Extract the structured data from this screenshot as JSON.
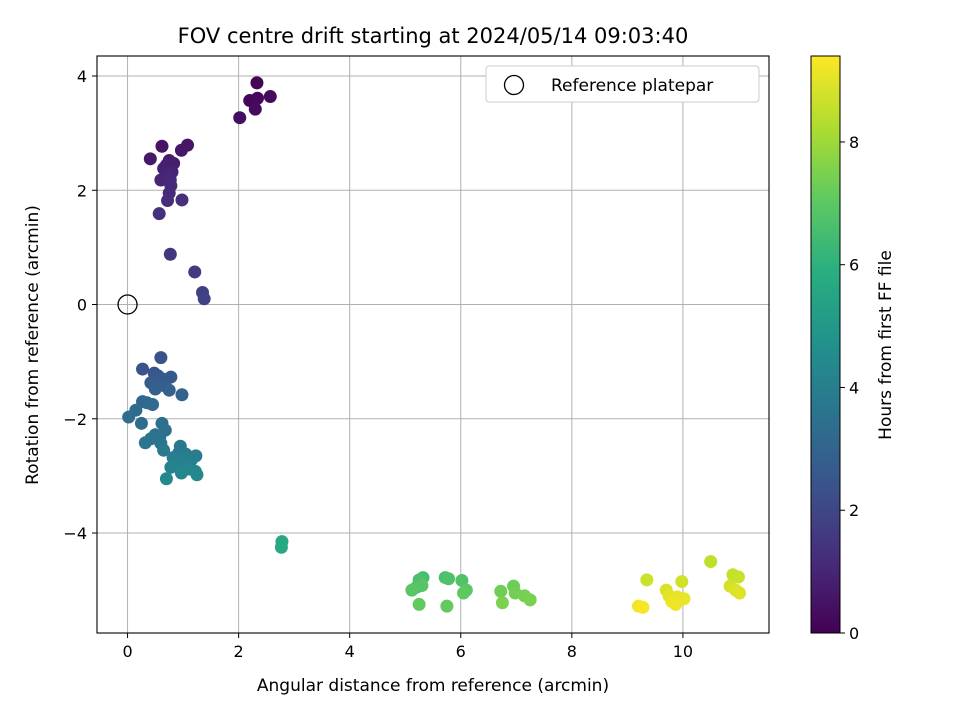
{
  "chart_data": {
    "type": "scatter",
    "title": "FOV centre drift starting at 2024/05/14 09:03:40",
    "xlabel": "Angular distance from reference (arcmin)",
    "ylabel": "Rotation from reference (arcmin)",
    "xlim": [
      -0.55,
      11.55
    ],
    "ylim": [
      -5.75,
      4.35
    ],
    "xticks": [
      0,
      2,
      4,
      6,
      8,
      10
    ],
    "yticks": [
      -4,
      -2,
      0,
      2,
      4
    ],
    "xtick_labels": [
      "0",
      "2",
      "4",
      "6",
      "8",
      "10"
    ],
    "ytick_labels": [
      "−4",
      "−2",
      "0",
      "2",
      "4"
    ],
    "grid": true,
    "legend": {
      "position": "top-right",
      "entries": [
        "Reference platepar"
      ]
    },
    "reference_point": {
      "x": 0,
      "y": 0,
      "label": "Reference platepar"
    },
    "colorbar": {
      "label": "Hours from first FF file",
      "colormap": "viridis",
      "range": [
        0,
        9.4
      ],
      "ticks": [
        0,
        2,
        4,
        6,
        8
      ],
      "tick_labels": [
        "0",
        "2",
        "4",
        "6",
        "8"
      ]
    },
    "points": [
      {
        "x": 2.33,
        "y": 3.88,
        "c": 0.1
      },
      {
        "x": 2.2,
        "y": 3.57,
        "c": 0.15
      },
      {
        "x": 2.34,
        "y": 3.61,
        "c": 0.2
      },
      {
        "x": 2.57,
        "y": 3.64,
        "c": 0.25
      },
      {
        "x": 2.3,
        "y": 3.42,
        "c": 0.3
      },
      {
        "x": 2.02,
        "y": 3.27,
        "c": 0.35
      },
      {
        "x": 0.62,
        "y": 2.77,
        "c": 0.5
      },
      {
        "x": 1.08,
        "y": 2.79,
        "c": 0.55
      },
      {
        "x": 0.97,
        "y": 2.7,
        "c": 0.6
      },
      {
        "x": 0.41,
        "y": 2.55,
        "c": 0.65
      },
      {
        "x": 0.75,
        "y": 2.52,
        "c": 0.7
      },
      {
        "x": 0.83,
        "y": 2.47,
        "c": 0.75
      },
      {
        "x": 0.7,
        "y": 2.44,
        "c": 0.8
      },
      {
        "x": 0.65,
        "y": 2.38,
        "c": 0.85
      },
      {
        "x": 0.8,
        "y": 2.32,
        "c": 0.9
      },
      {
        "x": 0.72,
        "y": 2.28,
        "c": 0.95
      },
      {
        "x": 0.6,
        "y": 2.18,
        "c": 1.0
      },
      {
        "x": 0.77,
        "y": 2.18,
        "c": 1.05
      },
      {
        "x": 0.78,
        "y": 2.08,
        "c": 1.1
      },
      {
        "x": 0.75,
        "y": 1.95,
        "c": 1.15
      },
      {
        "x": 0.72,
        "y": 1.82,
        "c": 1.2
      },
      {
        "x": 0.98,
        "y": 1.83,
        "c": 1.25
      },
      {
        "x": 0.57,
        "y": 1.59,
        "c": 1.3
      },
      {
        "x": 0.77,
        "y": 0.88,
        "c": 1.45
      },
      {
        "x": 1.21,
        "y": 0.57,
        "c": 1.6
      },
      {
        "x": 1.35,
        "y": 0.21,
        "c": 1.75
      },
      {
        "x": 1.38,
        "y": 0.1,
        "c": 1.85
      },
      {
        "x": 0.6,
        "y": -0.93,
        "c": 2.4
      },
      {
        "x": 0.27,
        "y": -1.13,
        "c": 2.45
      },
      {
        "x": 0.48,
        "y": -1.2,
        "c": 2.5
      },
      {
        "x": 0.55,
        "y": -1.25,
        "c": 2.55
      },
      {
        "x": 0.62,
        "y": -1.3,
        "c": 2.6
      },
      {
        "x": 0.78,
        "y": -1.27,
        "c": 2.65
      },
      {
        "x": 0.42,
        "y": -1.37,
        "c": 2.7
      },
      {
        "x": 0.56,
        "y": -1.4,
        "c": 2.75
      },
      {
        "x": 0.68,
        "y": -1.43,
        "c": 2.8
      },
      {
        "x": 0.5,
        "y": -1.48,
        "c": 2.85
      },
      {
        "x": 0.75,
        "y": -1.5,
        "c": 2.9
      },
      {
        "x": 0.98,
        "y": -1.58,
        "c": 2.95
      },
      {
        "x": 0.27,
        "y": -1.7,
        "c": 3.1
      },
      {
        "x": 0.35,
        "y": -1.72,
        "c": 3.15
      },
      {
        "x": 0.45,
        "y": -1.75,
        "c": 3.2
      },
      {
        "x": 0.15,
        "y": -1.85,
        "c": 3.25
      },
      {
        "x": 0.02,
        "y": -1.97,
        "c": 3.3
      },
      {
        "x": 0.25,
        "y": -2.08,
        "c": 3.35
      },
      {
        "x": 0.62,
        "y": -2.08,
        "c": 3.4
      },
      {
        "x": 0.68,
        "y": -2.2,
        "c": 3.45
      },
      {
        "x": 0.5,
        "y": -2.28,
        "c": 3.5
      },
      {
        "x": 0.58,
        "y": -2.32,
        "c": 3.55
      },
      {
        "x": 0.42,
        "y": -2.35,
        "c": 3.6
      },
      {
        "x": 0.32,
        "y": -2.42,
        "c": 3.65
      },
      {
        "x": 0.6,
        "y": -2.43,
        "c": 3.7
      },
      {
        "x": 0.95,
        "y": -2.48,
        "c": 3.75
      },
      {
        "x": 0.65,
        "y": -2.55,
        "c": 3.8
      },
      {
        "x": 0.92,
        "y": -2.6,
        "c": 3.85
      },
      {
        "x": 1.05,
        "y": -2.62,
        "c": 3.9
      },
      {
        "x": 1.23,
        "y": -2.65,
        "c": 3.95
      },
      {
        "x": 0.82,
        "y": -2.68,
        "c": 4.0
      },
      {
        "x": 1.15,
        "y": -2.72,
        "c": 4.05
      },
      {
        "x": 0.88,
        "y": -2.75,
        "c": 4.1
      },
      {
        "x": 1.02,
        "y": -2.78,
        "c": 4.15
      },
      {
        "x": 0.78,
        "y": -2.85,
        "c": 4.2
      },
      {
        "x": 1.1,
        "y": -2.88,
        "c": 4.25
      },
      {
        "x": 1.22,
        "y": -2.92,
        "c": 4.3
      },
      {
        "x": 0.97,
        "y": -2.95,
        "c": 4.35
      },
      {
        "x": 1.25,
        "y": -2.98,
        "c": 4.4
      },
      {
        "x": 0.7,
        "y": -3.05,
        "c": 4.45
      },
      {
        "x": 2.78,
        "y": -4.15,
        "c": 5.6
      },
      {
        "x": 2.77,
        "y": -4.25,
        "c": 5.65
      },
      {
        "x": 5.32,
        "y": -4.78,
        "c": 6.6
      },
      {
        "x": 5.72,
        "y": -4.78,
        "c": 6.65
      },
      {
        "x": 5.25,
        "y": -4.82,
        "c": 6.7
      },
      {
        "x": 5.78,
        "y": -4.8,
        "c": 6.75
      },
      {
        "x": 6.02,
        "y": -4.83,
        "c": 6.8
      },
      {
        "x": 5.2,
        "y": -4.95,
        "c": 6.85
      },
      {
        "x": 5.3,
        "y": -4.92,
        "c": 6.9
      },
      {
        "x": 5.12,
        "y": -5.0,
        "c": 6.95
      },
      {
        "x": 6.1,
        "y": -5.0,
        "c": 7.0
      },
      {
        "x": 6.05,
        "y": -5.05,
        "c": 7.05
      },
      {
        "x": 5.25,
        "y": -5.25,
        "c": 7.1
      },
      {
        "x": 5.75,
        "y": -5.28,
        "c": 7.15
      },
      {
        "x": 6.95,
        "y": -4.93,
        "c": 7.3
      },
      {
        "x": 6.72,
        "y": -5.02,
        "c": 7.35
      },
      {
        "x": 6.98,
        "y": -5.05,
        "c": 7.4
      },
      {
        "x": 7.15,
        "y": -5.1,
        "c": 7.45
      },
      {
        "x": 7.25,
        "y": -5.17,
        "c": 7.5
      },
      {
        "x": 6.75,
        "y": -5.22,
        "c": 7.55
      },
      {
        "x": 10.5,
        "y": -4.5,
        "c": 8.5
      },
      {
        "x": 10.9,
        "y": -4.73,
        "c": 8.6
      },
      {
        "x": 11.0,
        "y": -4.77,
        "c": 8.65
      },
      {
        "x": 9.35,
        "y": -4.82,
        "c": 8.7
      },
      {
        "x": 9.98,
        "y": -4.85,
        "c": 8.75
      },
      {
        "x": 10.85,
        "y": -4.93,
        "c": 8.8
      },
      {
        "x": 9.7,
        "y": -5.0,
        "c": 8.85
      },
      {
        "x": 10.95,
        "y": -5.0,
        "c": 8.9
      },
      {
        "x": 11.02,
        "y": -5.05,
        "c": 8.95
      },
      {
        "x": 9.75,
        "y": -5.1,
        "c": 9.0
      },
      {
        "x": 9.9,
        "y": -5.12,
        "c": 9.05
      },
      {
        "x": 10.02,
        "y": -5.15,
        "c": 9.1
      },
      {
        "x": 9.8,
        "y": -5.2,
        "c": 9.15
      },
      {
        "x": 9.87,
        "y": -5.25,
        "c": 9.2
      },
      {
        "x": 9.2,
        "y": -5.28,
        "c": 9.25
      },
      {
        "x": 9.28,
        "y": -5.3,
        "c": 9.3
      }
    ]
  }
}
